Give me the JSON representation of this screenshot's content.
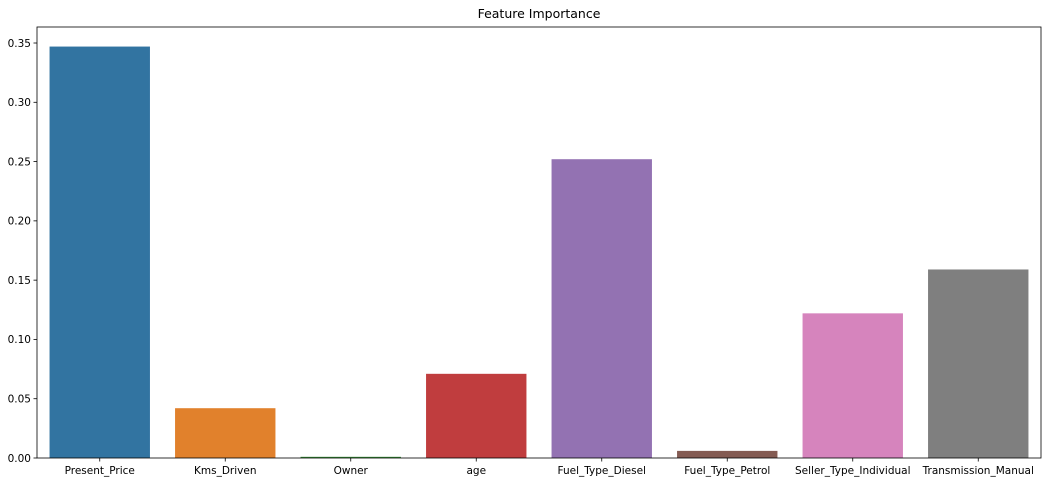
{
  "chart_data": {
    "type": "bar",
    "title": "Feature Importance",
    "xlabel": "",
    "ylabel": "",
    "categories": [
      "Present_Price",
      "Kms_Driven",
      "Owner",
      "age",
      "Fuel_Type_Diesel",
      "Fuel_Type_Petrol",
      "Seller_Type_Individual",
      "Transmission_Manual"
    ],
    "values": [
      0.347,
      0.042,
      0.001,
      0.071,
      0.252,
      0.006,
      0.122,
      0.159
    ],
    "colors": [
      "#3274a1",
      "#e1812c",
      "#3a923a",
      "#c03d3e",
      "#9372b2",
      "#845b53",
      "#d684bd",
      "#7f7f7f"
    ],
    "ylim": [
      0,
      0.3635
    ],
    "yticks": [
      0.0,
      0.05,
      0.1,
      0.15,
      0.2,
      0.25,
      0.3,
      0.35
    ],
    "ytick_labels": [
      "0.00",
      "0.05",
      "0.10",
      "0.15",
      "0.20",
      "0.25",
      "0.30",
      "0.35"
    ],
    "grid": false,
    "legend": "none"
  }
}
